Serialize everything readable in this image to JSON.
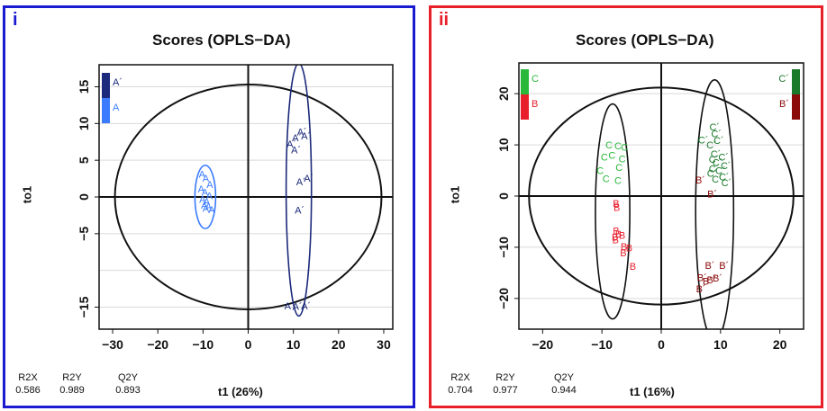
{
  "panels": [
    {
      "letter": "i",
      "title": "Scores (OPLS−DA)",
      "xlabel": "t1 (26%)",
      "ylabel": "to1",
      "stats": [
        {
          "label": "R2X",
          "value": "0.586"
        },
        {
          "label": "R2Y",
          "value": "0.989"
        },
        {
          "label": "Q2Y",
          "value": "0.893"
        }
      ],
      "legend": [
        {
          "name": "A´",
          "color": "#1b2a7a"
        },
        {
          "name": "A",
          "color": "#3a7bff"
        }
      ]
    },
    {
      "letter": "ii",
      "title": "Scores (OPLS−DA)",
      "xlabel": "t1 (16%)",
      "ylabel": "to1",
      "stats": [
        {
          "label": "R2X",
          "value": "0.704"
        },
        {
          "label": "R2Y",
          "value": "0.977"
        },
        {
          "label": "Q2Y",
          "value": "0.944"
        }
      ],
      "legend_left": [
        {
          "name": "C",
          "color": "#2ab83a"
        },
        {
          "name": "B",
          "color": "#e81e2a"
        }
      ],
      "legend_right": [
        {
          "name": "C´",
          "color": "#1a7a2a"
        },
        {
          "name": "B´",
          "color": "#8b0a0a"
        }
      ]
    }
  ],
  "chart_data": [
    {
      "type": "scatter",
      "title": "Scores (OPLS−DA)",
      "xlabel": "t1 (26%)",
      "ylabel": "to1",
      "xlim": [
        -33,
        32
      ],
      "ylim": [
        -18,
        18
      ],
      "xticks": [
        -30,
        -20,
        -10,
        0,
        10,
        20,
        30
      ],
      "yticks": [
        -15,
        -5,
        0,
        5,
        10,
        15
      ],
      "ellipses": [
        {
          "cx": 0,
          "cy": 0,
          "rx": 29.5,
          "ry": 15.3,
          "color": "#111111"
        },
        {
          "cx": -9.5,
          "cy": 0,
          "rx": 2.3,
          "ry": 4.3,
          "color": "#3a7bff"
        },
        {
          "cx": 11.2,
          "cy": 1.0,
          "rx": 2.8,
          "ry": 17.2,
          "color": "#1b2a7a"
        }
      ],
      "series": [
        {
          "name": "A",
          "color": "#3a7bff",
          "points": [
            [
              -10.2,
              3.1
            ],
            [
              -9.4,
              2.6
            ],
            [
              -8.5,
              1.7
            ],
            [
              -10.4,
              1.1
            ],
            [
              -9.6,
              0.7
            ],
            [
              -8.6,
              0.2
            ],
            [
              -10.1,
              -0.3
            ],
            [
              -9.2,
              -0.6
            ],
            [
              -9.7,
              -1.1
            ],
            [
              -8.8,
              -1.3
            ],
            [
              -8.1,
              -1.7
            ],
            [
              -9.4,
              -1.5
            ]
          ]
        },
        {
          "name": "A´",
          "color": "#1b2a7a",
          "points": [
            [
              11.9,
              8.9
            ],
            [
              12.8,
              8.3
            ],
            [
              10.8,
              8.1
            ],
            [
              9.6,
              7.2
            ],
            [
              10.6,
              6.4
            ],
            [
              13.4,
              2.6
            ],
            [
              11.7,
              2.1
            ],
            [
              11.4,
              -1.8
            ],
            [
              9.1,
              -14.8
            ],
            [
              10.9,
              -14.9
            ],
            [
              12.8,
              -14.8
            ]
          ]
        }
      ]
    },
    {
      "type": "scatter",
      "title": "Scores (OPLS−DA)",
      "xlabel": "t1 (16%)",
      "ylabel": "to1",
      "xlim": [
        -24,
        24
      ],
      "ylim": [
        -26,
        26
      ],
      "xticks": [
        -20,
        -10,
        0,
        10,
        20
      ],
      "yticks": [
        -20,
        -10,
        0,
        10,
        20
      ],
      "ellipses": [
        {
          "cx": 0,
          "cy": 0,
          "rx": 22.3,
          "ry": 21.2,
          "color": "#111111"
        },
        {
          "cx": -8.2,
          "cy": -3.0,
          "rx": 2.9,
          "ry": 21.0,
          "color": "#111111"
        },
        {
          "cx": 9.0,
          "cy": -2.8,
          "rx": 3.2,
          "ry": 25.5,
          "color": "#111111"
        }
      ],
      "series": [
        {
          "name": "C",
          "color": "#2ab83a",
          "points": [
            [
              -8.8,
              10.0
            ],
            [
              -7.3,
              9.8
            ],
            [
              -6.2,
              9.6
            ],
            [
              -9.6,
              7.6
            ],
            [
              -8.3,
              8.0
            ],
            [
              -6.6,
              7.3
            ],
            [
              -7.1,
              5.6
            ],
            [
              -10.3,
              5.0
            ],
            [
              -9.3,
              3.4
            ],
            [
              -7.3,
              3.1
            ]
          ]
        },
        {
          "name": "B",
          "color": "#e81e2a",
          "points": [
            [
              -7.6,
              -1.4
            ],
            [
              -7.5,
              -2.2
            ],
            [
              -7.6,
              -6.8
            ],
            [
              -7.2,
              -7.4
            ],
            [
              -6.6,
              -7.6
            ],
            [
              -7.8,
              -8.0
            ],
            [
              -7.7,
              -8.5
            ],
            [
              -6.3,
              -9.8
            ],
            [
              -5.4,
              -10.1
            ],
            [
              -6.4,
              -11.1
            ],
            [
              -4.8,
              -13.7
            ]
          ]
        },
        {
          "name": "C´",
          "color": "#1a7a2a",
          "points": [
            [
              9.0,
              13.5
            ],
            [
              9.3,
              12.2
            ],
            [
              7.1,
              11.0
            ],
            [
              9.7,
              10.9
            ],
            [
              8.5,
              10.0
            ],
            [
              9.2,
              8.3
            ],
            [
              10.5,
              7.6
            ],
            [
              8.9,
              7.2
            ],
            [
              9.5,
              6.6
            ],
            [
              10.9,
              6.0
            ],
            [
              8.9,
              5.4
            ],
            [
              10.0,
              5.0
            ],
            [
              8.6,
              4.5
            ],
            [
              10.6,
              3.8
            ],
            [
              9.4,
              3.3
            ],
            [
              11.0,
              2.6
            ]
          ]
        },
        {
          "name": "B´",
          "color": "#8b0a0a",
          "points": [
            [
              6.6,
              3.2
            ],
            [
              8.6,
              0.4
            ],
            [
              8.2,
              -13.5
            ],
            [
              10.6,
              -13.5
            ],
            [
              6.9,
              -15.9
            ],
            [
              8.5,
              -16.3
            ],
            [
              9.5,
              -16.0
            ],
            [
              7.8,
              -16.6
            ],
            [
              6.7,
              -18.1
            ]
          ]
        }
      ]
    }
  ]
}
